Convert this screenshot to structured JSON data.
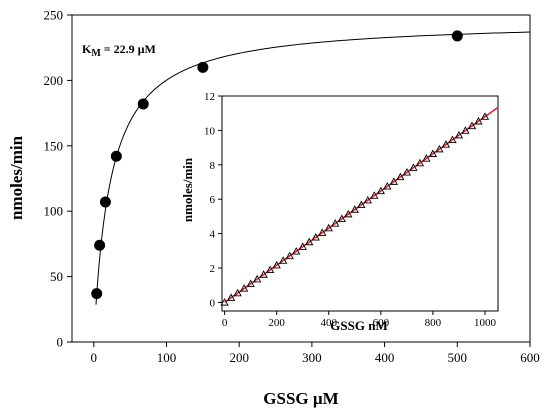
{
  "chart_data": [
    {
      "type": "scatter",
      "xlabel": "GSSG µM",
      "ylabel": "nmoles/min",
      "xlim": [
        -30,
        600
      ],
      "ylim": [
        0,
        250
      ],
      "xticks": [
        0,
        100,
        200,
        300,
        400,
        500,
        600
      ],
      "yticks": [
        0,
        50,
        100,
        150,
        200,
        250
      ],
      "grid": false,
      "annotation": {
        "prefix": "K",
        "subscript": "M",
        "value": " = 22.9 µM"
      },
      "series": [
        {
          "kind": "points",
          "marker": "filled-circle",
          "color": "#000000",
          "x": [
            4,
            8,
            16,
            31,
            68,
            150,
            500
          ],
          "y": [
            37,
            74,
            107,
            142,
            182,
            210,
            234
          ]
        },
        {
          "kind": "fit-curve",
          "model": "michaelis-menten",
          "color": "#000000",
          "vmax": 246,
          "km": 22.9,
          "x_range": [
            3,
            600
          ]
        }
      ]
    },
    {
      "type": "scatter",
      "xlabel": "GSSG nM",
      "ylabel": "nmoles/min",
      "xlim": [
        -10,
        1050
      ],
      "ylim": [
        -0.5,
        12
      ],
      "xticks": [
        0,
        200,
        400,
        600,
        800,
        1000
      ],
      "yticks": [
        0,
        2,
        4,
        6,
        8,
        10,
        12
      ],
      "grid": false,
      "series": [
        {
          "kind": "points",
          "marker": "open-triangle",
          "color": "#000000",
          "x": [
            0,
            25,
            50,
            75,
            100,
            125,
            150,
            175,
            200,
            225,
            250,
            275,
            300,
            325,
            350,
            375,
            400,
            425,
            450,
            475,
            500,
            525,
            550,
            575,
            600,
            625,
            650,
            675,
            700,
            725,
            750,
            775,
            800,
            825,
            850,
            875,
            900,
            925,
            950,
            975,
            1000
          ],
          "y": [
            0,
            0.27,
            0.54,
            0.81,
            1.08,
            1.35,
            1.62,
            1.89,
            2.16,
            2.43,
            2.7,
            2.97,
            3.24,
            3.51,
            3.78,
            4.05,
            4.32,
            4.59,
            4.86,
            5.13,
            5.4,
            5.67,
            5.94,
            6.21,
            6.48,
            6.75,
            7.02,
            7.29,
            7.56,
            7.83,
            8.1,
            8.37,
            8.64,
            8.91,
            9.18,
            9.45,
            9.72,
            9.99,
            10.26,
            10.53,
            10.8
          ]
        },
        {
          "kind": "fit-line",
          "color": "#e8202a",
          "slope": 0.0108,
          "intercept": 0,
          "x_range": [
            0,
            1050
          ]
        }
      ]
    }
  ]
}
